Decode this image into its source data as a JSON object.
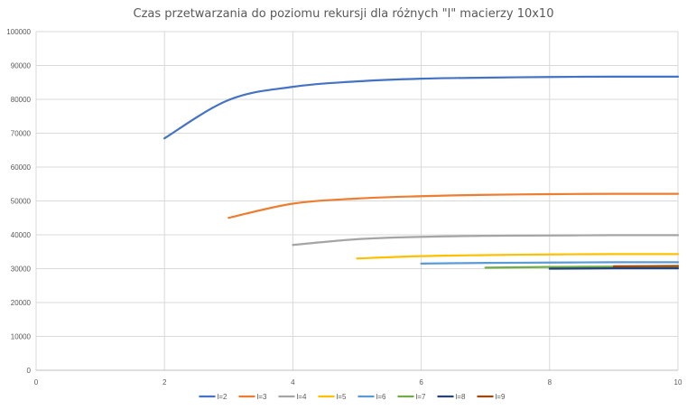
{
  "chart_data": {
    "type": "line",
    "title": "Czas przetwarzania do poziomu rekursji dla różnych \"l\" macierzy 10x10",
    "xlabel": "",
    "ylabel": "",
    "xlim": [
      0,
      10
    ],
    "ylim": [
      0,
      100000
    ],
    "x_ticks": [
      "0",
      "2",
      "4",
      "6",
      "8",
      "10"
    ],
    "y_ticks": [
      "0",
      "10000",
      "20000",
      "30000",
      "40000",
      "50000",
      "60000",
      "70000",
      "80000",
      "90000",
      "100000"
    ],
    "grid": true,
    "legend_position": "bottom",
    "series": [
      {
        "name": "l=2",
        "color": "#4472C4",
        "x": [
          2,
          3,
          4,
          5,
          6,
          7,
          8,
          9,
          10
        ],
        "y": [
          68500,
          79800,
          83700,
          85300,
          86100,
          86400,
          86600,
          86700,
          86700
        ]
      },
      {
        "name": "l=3",
        "color": "#ED7D31",
        "x": [
          3,
          4,
          5,
          6,
          7,
          8,
          9,
          10
        ],
        "y": [
          45000,
          49200,
          50700,
          51400,
          51800,
          52000,
          52100,
          52100
        ]
      },
      {
        "name": "l=4",
        "color": "#A5A5A5",
        "x": [
          4,
          5,
          6,
          7,
          8,
          9,
          10
        ],
        "y": [
          37000,
          38700,
          39400,
          39700,
          39800,
          39900,
          39900
        ]
      },
      {
        "name": "l=5",
        "color": "#FFC000",
        "x": [
          5,
          6,
          7,
          8,
          9,
          10
        ],
        "y": [
          33000,
          33700,
          34000,
          34200,
          34300,
          34300
        ]
      },
      {
        "name": "l=6",
        "color": "#5B9BD5",
        "x": [
          6,
          7,
          8,
          9,
          10
        ],
        "y": [
          31500,
          31700,
          31800,
          31900,
          31900
        ]
      },
      {
        "name": "l=7",
        "color": "#70AD47",
        "x": [
          7,
          8,
          9,
          10
        ],
        "y": [
          30300,
          30500,
          30600,
          30600
        ]
      },
      {
        "name": "l=8",
        "color": "#264478",
        "x": [
          8,
          9,
          10
        ],
        "y": [
          30000,
          30100,
          30100
        ]
      },
      {
        "name": "l=9",
        "color": "#9E480E",
        "x": [
          9,
          10
        ],
        "y": [
          30700,
          30800
        ]
      }
    ]
  }
}
